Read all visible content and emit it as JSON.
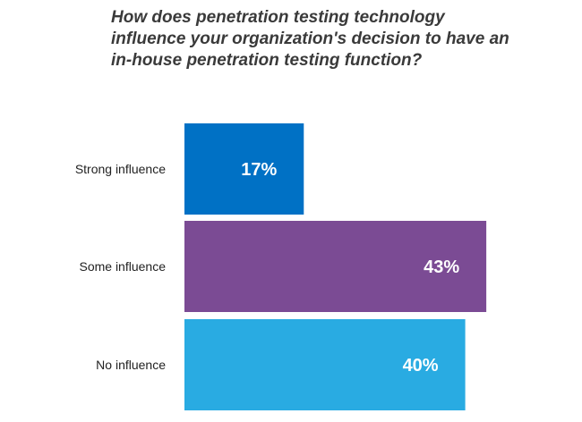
{
  "title_lines": [
    "How does penetration testing technology",
    "influence your organization's decision to have an",
    "in-house penetration testing function?"
  ],
  "chart_data": {
    "type": "bar",
    "orientation": "horizontal",
    "title": "How does penetration testing technology influence your organization's decision to have an in-house penetration testing function?",
    "categories": [
      "Strong influence",
      "Some influence",
      "No influence"
    ],
    "values": [
      17,
      43,
      40
    ],
    "value_labels": [
      "17%",
      "43%",
      "40%"
    ],
    "unit": "%",
    "colors": [
      "#0071C5",
      "#7B4B94",
      "#29ABE2"
    ],
    "grid": false,
    "legend": "none"
  }
}
